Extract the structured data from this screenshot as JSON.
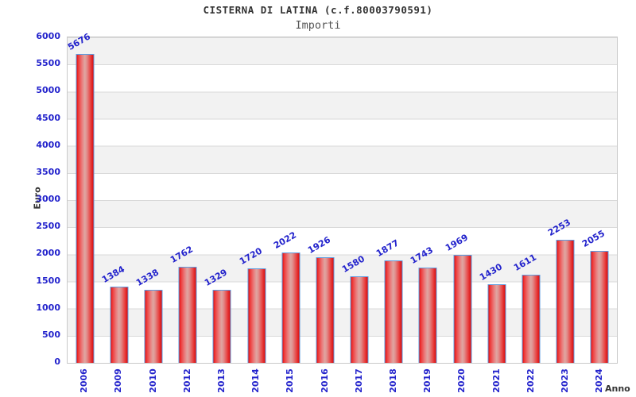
{
  "chart_data": {
    "type": "bar",
    "title": "CISTERNA DI LATINA (c.f.80003790591)",
    "subtitle": "Importi",
    "ylabel": "Euro",
    "xlabel": "Anno",
    "categories": [
      "2006",
      "2009",
      "2010",
      "2012",
      "2013",
      "2014",
      "2015",
      "2016",
      "2017",
      "2018",
      "2019",
      "2020",
      "2021",
      "2022",
      "2023",
      "2024"
    ],
    "values": [
      5676,
      1384,
      1338,
      1762,
      1329,
      1720,
      2022,
      1926,
      1580,
      1877,
      1743,
      1969,
      1430,
      1611,
      2253,
      2055
    ],
    "ylim": [
      0,
      6000
    ],
    "ytick_step": 500,
    "grid": true,
    "legend": "none",
    "bands": "alternating-horizontal",
    "colors": {
      "tick_label": "#2323cc",
      "value_label": "#2323cc",
      "bar_border": "#5d9ce0",
      "bar_fill_edge": "#e20f0f",
      "bar_fill_center": "#dfa6a2",
      "band_gray": "#f2f2f2",
      "band_white": "#ffffff",
      "gridline": "#d9d9d9",
      "plot_border": "#c9c9c9",
      "title_color": "#333333",
      "subtitle_color": "#555555",
      "axis_title_color": "#333333"
    }
  }
}
